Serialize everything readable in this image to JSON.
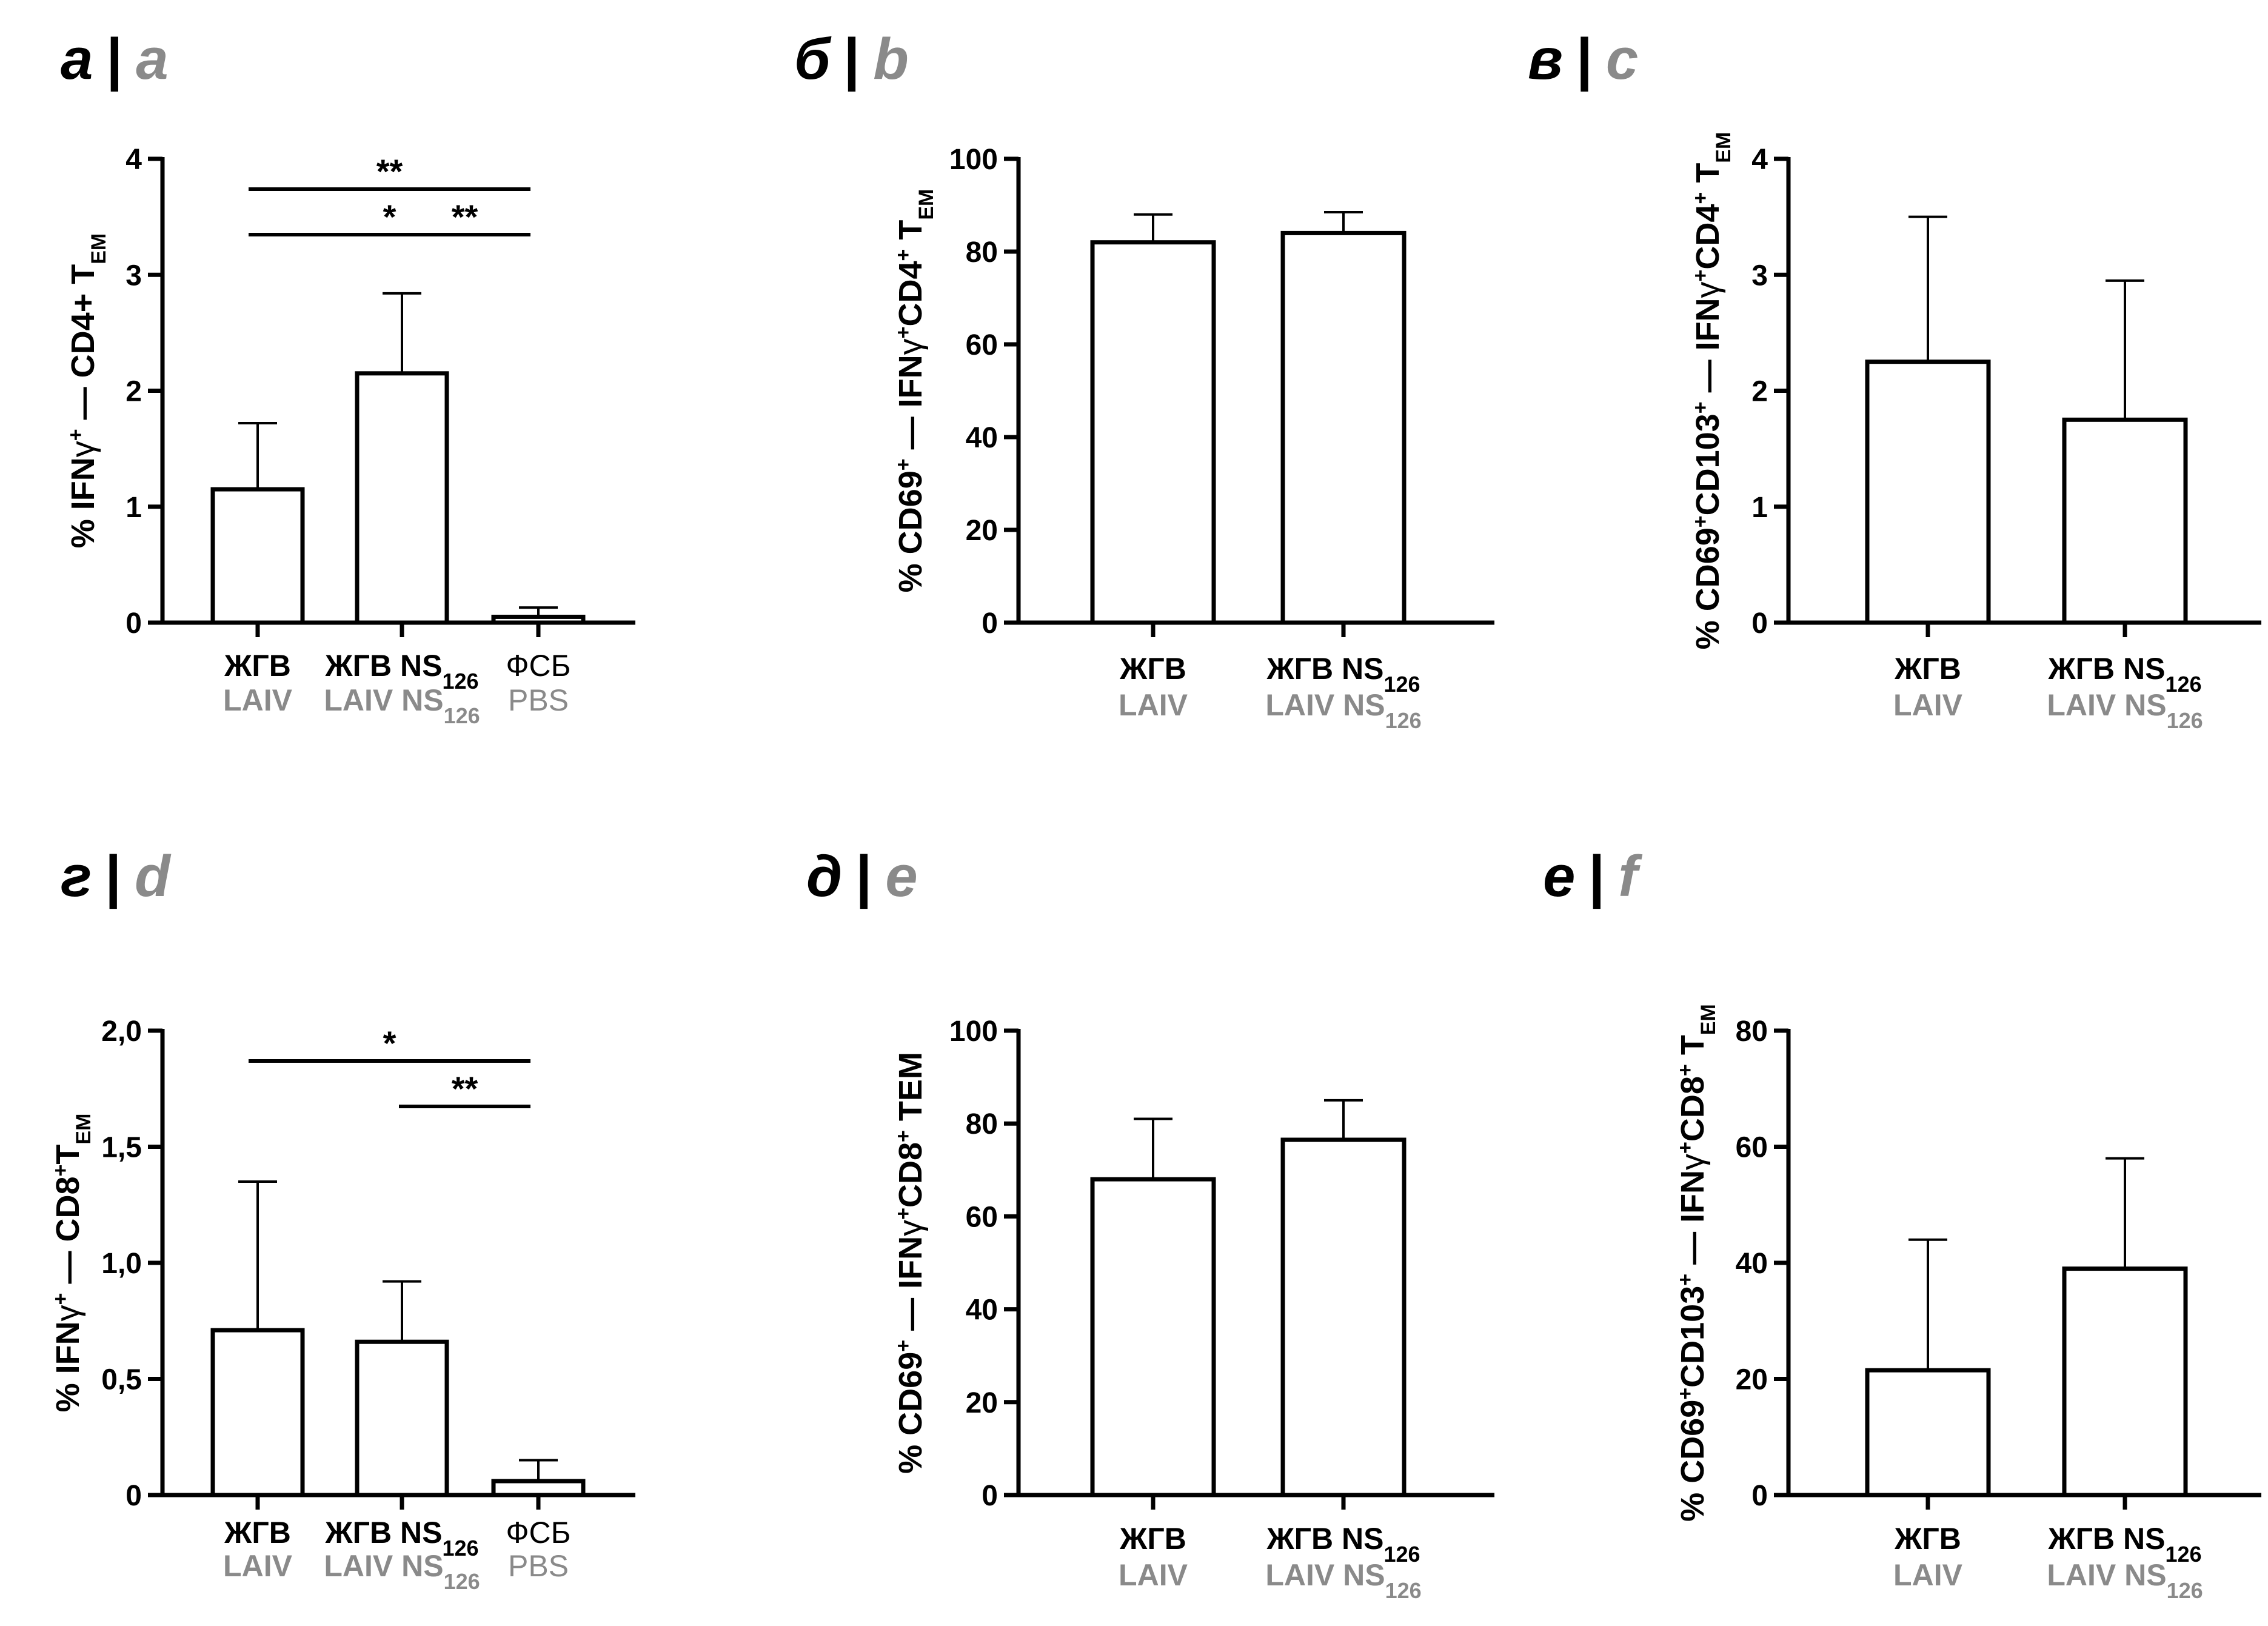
{
  "panels": [
    {
      "label_ru": "а",
      "label_en": "a",
      "ylabel": "% IFNγ+ — CD4+ TEM",
      "ylabel_parts": [
        [
          "% IFN",
          ""
        ],
        [
          "γ",
          "sym"
        ],
        [
          "+",
          "sup"
        ],
        [
          " — CD4+ T",
          ""
        ],
        [
          "EM",
          "sub"
        ]
      ],
      "ticks": [
        "0",
        "1",
        "2",
        "3",
        "4"
      ],
      "categories": [
        {
          "ru": "ЖГВ",
          "ru_sub": "",
          "en": "LAIV",
          "en_sub": "",
          "light": false
        },
        {
          "ru": "ЖГВ NS",
          "ru_sub": "126",
          "en": "LAIV NS",
          "en_sub": "126",
          "light": false
        },
        {
          "ru": "ФСБ",
          "ru_sub": "",
          "en": "PBS",
          "en_sub": "",
          "light": true
        }
      ],
      "significance": [
        {
          "from": 0,
          "to": 2,
          "label": "**",
          "level": 2
        },
        {
          "from": 0,
          "to": 1,
          "label": "*",
          "level": 1
        },
        {
          "from": 1,
          "to": 2,
          "label": "**",
          "level": 1
        }
      ]
    },
    {
      "label_ru": "б",
      "label_en": "b",
      "ylabel": "% CD69+ — IFNγ+CD4+ TEM",
      "ylabel_parts": [
        [
          "% CD69",
          ""
        ],
        [
          "+",
          "sup"
        ],
        [
          " — IFN",
          ""
        ],
        [
          "γ",
          "sym"
        ],
        [
          "+",
          "sup"
        ],
        [
          "CD4",
          ""
        ],
        [
          "+",
          "sup"
        ],
        [
          " T",
          ""
        ],
        [
          "EM",
          "sub"
        ]
      ],
      "ticks": [
        "0",
        "20",
        "40",
        "60",
        "80",
        "100"
      ],
      "categories": [
        {
          "ru": "ЖГВ",
          "ru_sub": "",
          "en": "LAIV",
          "en_sub": "",
          "light": false
        },
        {
          "ru": "ЖГВ NS",
          "ru_sub": "126",
          "en": "LAIV NS",
          "en_sub": "126",
          "light": false
        }
      ],
      "significance": []
    },
    {
      "label_ru": "в",
      "label_en": "c",
      "ylabel": "% CD69+CD103+ — IFNγ+CD4+ TEM",
      "ylabel_parts": [
        [
          "% CD69",
          ""
        ],
        [
          "+",
          "sup"
        ],
        [
          "CD103",
          ""
        ],
        [
          "+",
          "sup"
        ],
        [
          " — IFN",
          ""
        ],
        [
          "γ",
          "sym"
        ],
        [
          "+",
          "sup"
        ],
        [
          "CD4",
          ""
        ],
        [
          "+",
          "sup"
        ],
        [
          " T",
          ""
        ],
        [
          "EM",
          "sub"
        ]
      ],
      "ticks": [
        "0",
        "1",
        "2",
        "3",
        "4"
      ],
      "categories": [
        {
          "ru": "ЖГВ",
          "ru_sub": "",
          "en": "LAIV",
          "en_sub": "",
          "light": false
        },
        {
          "ru": "ЖГВ NS",
          "ru_sub": "126",
          "en": "LAIV NS",
          "en_sub": "126",
          "light": false
        }
      ],
      "significance": []
    },
    {
      "label_ru": "г",
      "label_en": "d",
      "ylabel": "% IFNγ+ — CD8+TEM",
      "ylabel_parts": [
        [
          "% IFN",
          ""
        ],
        [
          "γ",
          "sym"
        ],
        [
          "+",
          "sup"
        ],
        [
          " — CD8",
          ""
        ],
        [
          "+",
          "sup"
        ],
        [
          "T",
          ""
        ],
        [
          "EM",
          "sub"
        ]
      ],
      "ticks": [
        "0",
        "0,5",
        "1,0",
        "1,5",
        "2,0"
      ],
      "categories": [
        {
          "ru": "ЖГВ",
          "ru_sub": "",
          "en": "LAIV",
          "en_sub": "",
          "light": false
        },
        {
          "ru": "ЖГВ NS",
          "ru_sub": "126",
          "en": "LAIV NS",
          "en_sub": "126",
          "light": false
        },
        {
          "ru": "ФСБ",
          "ru_sub": "",
          "en": "PBS",
          "en_sub": "",
          "light": true
        }
      ],
      "significance": [
        {
          "from": 0,
          "to": 2,
          "label": "*",
          "level": 2
        },
        {
          "from": 1,
          "to": 2,
          "label": "**",
          "level": 1
        }
      ]
    },
    {
      "label_ru": "д",
      "label_en": "e",
      "ylabel": "% CD69+ — IFNγ+CD8+ TEM",
      "ylabel_parts": [
        [
          "% CD69",
          ""
        ],
        [
          "+",
          "sup"
        ],
        [
          " — IFN",
          ""
        ],
        [
          "γ",
          "sym"
        ],
        [
          "+",
          "sup"
        ],
        [
          "CD8",
          ""
        ],
        [
          "+",
          "sup"
        ],
        [
          " TEM",
          ""
        ]
      ],
      "ticks": [
        "0",
        "20",
        "40",
        "60",
        "80",
        "100"
      ],
      "categories": [
        {
          "ru": "ЖГВ",
          "ru_sub": "",
          "en": "LAIV",
          "en_sub": "",
          "light": false
        },
        {
          "ru": "ЖГВ NS",
          "ru_sub": "126",
          "en": "LAIV NS",
          "en_sub": "126",
          "light": false
        }
      ],
      "significance": []
    },
    {
      "label_ru": "е",
      "label_en": "f",
      "ylabel": "% CD69+CD103+ — IFNγ+CD8+ TEM",
      "ylabel_parts": [
        [
          "% CD69",
          ""
        ],
        [
          "+",
          "sup"
        ],
        [
          "CD103",
          ""
        ],
        [
          "+",
          "sup"
        ],
        [
          " — IFN",
          ""
        ],
        [
          "γ",
          "sym"
        ],
        [
          "+",
          "sup"
        ],
        [
          "CD8",
          ""
        ],
        [
          "+",
          "sup"
        ],
        [
          " T",
          ""
        ],
        [
          "EM",
          "sub"
        ]
      ],
      "ticks": [
        "0",
        "20",
        "40",
        "60",
        "80"
      ],
      "categories": [
        {
          "ru": "ЖГВ",
          "ru_sub": "",
          "en": "LAIV",
          "en_sub": "",
          "light": false
        },
        {
          "ru": "ЖГВ NS",
          "ru_sub": "126",
          "en": "LAIV NS",
          "en_sub": "126",
          "light": false
        }
      ],
      "significance": []
    }
  ],
  "chart_data": [
    {
      "type": "bar",
      "panel": "а | a",
      "categories": [
        "ЖГВ / LAIV",
        "ЖГВ NS126 / LAIV NS126",
        "ФСБ / PBS"
      ],
      "values": [
        1.15,
        2.15,
        0.05
      ],
      "error_upper": [
        1.72,
        2.84,
        0.13
      ],
      "ylabel": "% IFNγ+ — CD4+ TEM",
      "ylim": [
        0,
        4
      ]
    },
    {
      "type": "bar",
      "panel": "б | b",
      "categories": [
        "ЖГВ / LAIV",
        "ЖГВ NS126 / LAIV NS126"
      ],
      "values": [
        82,
        84
      ],
      "error_upper": [
        88,
        88.5
      ],
      "ylabel": "% CD69+ — IFNγ+CD4+ TEM",
      "ylim": [
        0,
        100
      ]
    },
    {
      "type": "bar",
      "panel": "в | c",
      "categories": [
        "ЖГВ / LAIV",
        "ЖГВ NS126 / LAIV NS126"
      ],
      "values": [
        2.25,
        1.75
      ],
      "error_upper": [
        3.5,
        2.95
      ],
      "ylabel": "% CD69+CD103+ — IFNγ+CD4+ TEM",
      "ylim": [
        0,
        4
      ]
    },
    {
      "type": "bar",
      "panel": "г | d",
      "categories": [
        "ЖГВ / LAIV",
        "ЖГВ NS126 / LAIV NS126",
        "ФСБ / PBS"
      ],
      "values": [
        0.71,
        0.66,
        0.06
      ],
      "error_upper": [
        1.35,
        0.92,
        0.15
      ],
      "ylabel": "% IFNγ+ — CD8+TEM",
      "ylim": [
        0,
        2.0
      ]
    },
    {
      "type": "bar",
      "panel": "д | e",
      "categories": [
        "ЖГВ / LAIV",
        "ЖГВ NS126 / LAIV NS126"
      ],
      "values": [
        68,
        76.5
      ],
      "error_upper": [
        81,
        85
      ],
      "ylabel": "% CD69+ — IFNγ+CD8+ TEM",
      "ylim": [
        0,
        100
      ]
    },
    {
      "type": "bar",
      "panel": "е | f",
      "categories": [
        "ЖГВ / LAIV",
        "ЖГВ NS126 / LAIV NS126"
      ],
      "values": [
        21.5,
        39
      ],
      "error_upper": [
        44,
        58
      ],
      "ylabel": "% CD69+CD103+ — IFNγ+CD8+ TEM",
      "ylim": [
        0,
        80
      ]
    }
  ]
}
